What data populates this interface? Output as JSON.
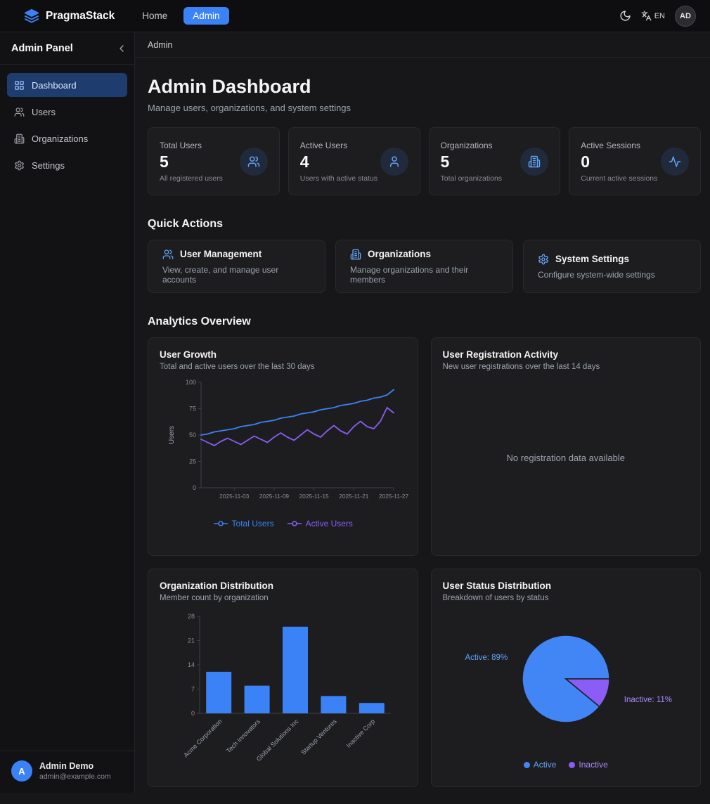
{
  "topbar": {
    "brand": "PragmaStack",
    "nav": [
      {
        "label": "Home"
      },
      {
        "label": "Admin"
      }
    ],
    "lang": "EN",
    "avatar": "AD"
  },
  "sidebar": {
    "title": "Admin Panel",
    "items": [
      {
        "label": "Dashboard"
      },
      {
        "label": "Users"
      },
      {
        "label": "Organizations"
      },
      {
        "label": "Settings"
      }
    ],
    "user": {
      "initial": "A",
      "name": "Admin Demo",
      "email": "admin@example.com"
    }
  },
  "breadcrumb": "Admin",
  "page": {
    "title": "Admin Dashboard",
    "subtitle": "Manage users, organizations, and system settings"
  },
  "stats": [
    {
      "label": "Total Users",
      "value": "5",
      "caption": "All registered users",
      "icon": "users-icon"
    },
    {
      "label": "Active Users",
      "value": "4",
      "caption": "Users with active status",
      "icon": "user-icon"
    },
    {
      "label": "Organizations",
      "value": "5",
      "caption": "Total organizations",
      "icon": "building-icon"
    },
    {
      "label": "Active Sessions",
      "value": "0",
      "caption": "Current active sessions",
      "icon": "activity-icon"
    }
  ],
  "quick_actions": {
    "heading": "Quick Actions",
    "items": [
      {
        "title": "User Management",
        "description": "View, create, and manage user accounts",
        "icon": "users-icon"
      },
      {
        "title": "Organizations",
        "description": "Manage organizations and their members",
        "icon": "building-icon"
      },
      {
        "title": "System Settings",
        "description": "Configure system-wide settings",
        "icon": "settings-icon"
      }
    ]
  },
  "analytics": {
    "heading": "Analytics Overview"
  },
  "chart_data": [
    {
      "id": "user_growth",
      "type": "line",
      "title": "User Growth",
      "subtitle": "Total and active users over the last 30 days",
      "ylabel": "Users",
      "ylim": [
        0,
        100
      ],
      "yticks": [
        0,
        25,
        50,
        75,
        100
      ],
      "xticks": [
        "2025-11-03",
        "2025-11-09",
        "2025-11-15",
        "2025-11-21",
        "2025-11-27"
      ],
      "xtick_indices": [
        5,
        11,
        17,
        23,
        29
      ],
      "grid": false,
      "legend_position": "bottom",
      "series": [
        {
          "name": "Total Users",
          "color": "#3b82f6",
          "values": [
            50,
            51,
            53,
            54,
            55,
            56,
            58,
            59,
            60,
            62,
            63,
            64,
            66,
            67,
            68,
            70,
            71,
            72,
            74,
            75,
            76,
            78,
            79,
            80,
            82,
            83,
            85,
            86,
            88,
            93
          ]
        },
        {
          "name": "Active Users",
          "color": "#8b5cf6",
          "values": [
            46,
            43,
            40,
            44,
            47,
            44,
            41,
            45,
            49,
            46,
            43,
            48,
            52,
            48,
            45,
            50,
            55,
            51,
            48,
            54,
            59,
            54,
            51,
            58,
            63,
            58,
            56,
            63,
            76,
            71
          ]
        }
      ]
    },
    {
      "id": "registration_activity",
      "type": "empty",
      "title": "User Registration Activity",
      "subtitle": "New user registrations over the last 14 days",
      "empty_text": "No registration data available"
    },
    {
      "id": "org_distribution",
      "type": "bar",
      "title": "Organization Distribution",
      "subtitle": "Member count by organization",
      "categories": [
        "Acme Corporation",
        "Tech Innovators",
        "Global Solutions Inc",
        "Startup Ventures",
        "Inactive Corp"
      ],
      "values": [
        12,
        8,
        25,
        5,
        3
      ],
      "ylim": [
        0,
        28
      ],
      "yticks": [
        0,
        7,
        14,
        21,
        28
      ],
      "bar_color": "#3b82f6",
      "grid": false
    },
    {
      "id": "user_status",
      "type": "pie",
      "title": "User Status Distribution",
      "subtitle": "Breakdown of users by status",
      "slices": [
        {
          "label": "Active",
          "pct": 89,
          "color": "#4285f4",
          "label_color": "#60a5fa"
        },
        {
          "label": "Inactive",
          "pct": 11,
          "color": "#8b5cf6",
          "label_color": "#a78bfa"
        }
      ],
      "legend_position": "bottom"
    }
  ]
}
